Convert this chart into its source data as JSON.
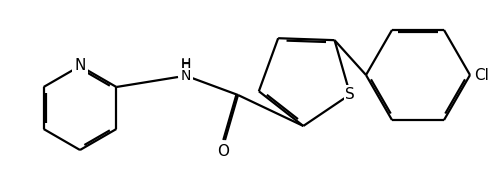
{
  "background_color": "#ffffff",
  "line_color": "#000000",
  "lw": 1.6,
  "dbo": 0.012,
  "figsize": [
    5.0,
    1.76
  ],
  "dpi": 100,
  "xlim": [
    0,
    500
  ],
  "ylim": [
    0,
    176
  ]
}
